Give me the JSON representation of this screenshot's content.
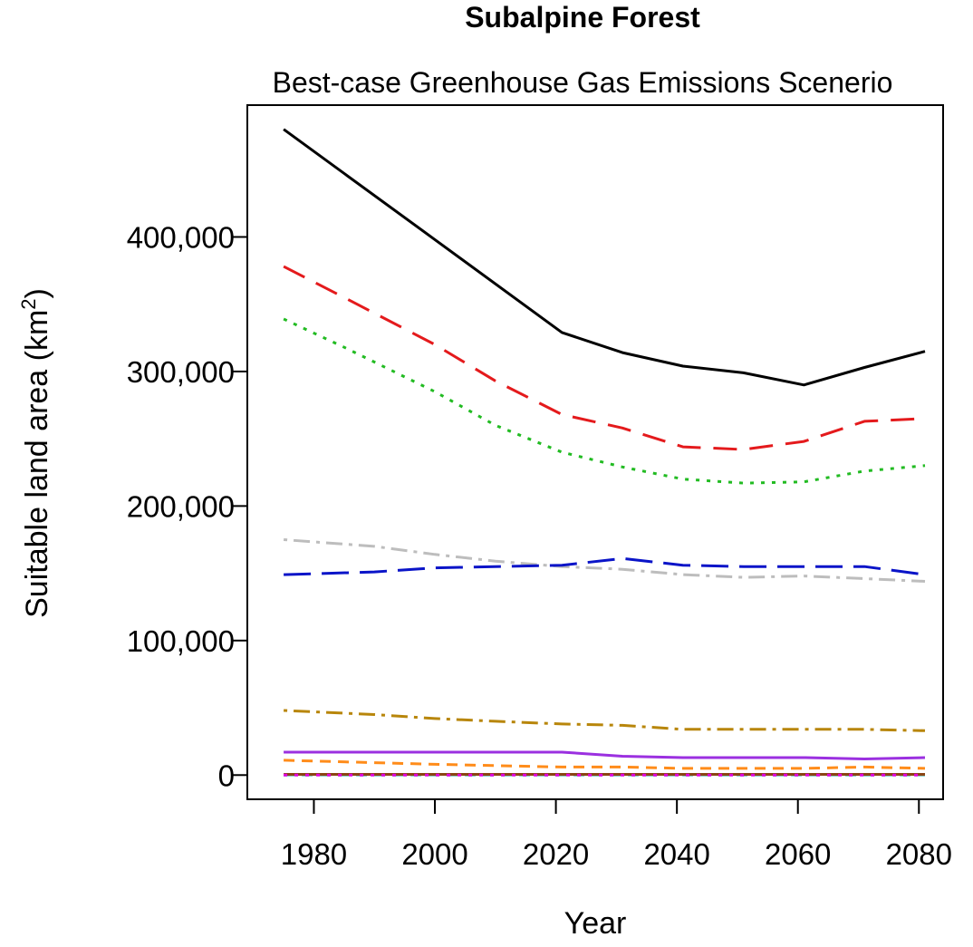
{
  "chart_data": {
    "type": "line",
    "title": "Subalpine Forest",
    "subtitle": "Best-case Greenhouse Gas Emissions Scenerio",
    "xlabel": "Year",
    "ylabel": "Suitable land area (km",
    "ylabel_sup": "2",
    "ylabel_close": ")",
    "xlim": [
      1969,
      2084
    ],
    "ylim": [
      -18000,
      498000
    ],
    "xticks": [
      {
        "value": 1980,
        "label": "1980"
      },
      {
        "value": 2000,
        "label": "2000"
      },
      {
        "value": 2020,
        "label": "2020"
      },
      {
        "value": 2040,
        "label": "2040"
      },
      {
        "value": 2060,
        "label": "2060"
      },
      {
        "value": 2080,
        "label": "2080"
      }
    ],
    "yticks": [
      {
        "value": 0,
        "label": "0"
      },
      {
        "value": 100000,
        "label": "100,000"
      },
      {
        "value": 200000,
        "label": "200,000"
      },
      {
        "value": 300000,
        "label": "300,000"
      },
      {
        "value": 400000,
        "label": "400,000"
      }
    ],
    "grid": false,
    "series": [
      {
        "color": "#000000",
        "dash": "solid",
        "width": 3,
        "x": [
          1975,
          2000,
          2021,
          2031,
          2041,
          2051,
          2061,
          2071,
          2081
        ],
        "y": [
          480000,
          398000,
          329000,
          314000,
          304000,
          299000,
          290000,
          303000,
          315000
        ]
      },
      {
        "color": "#e41a1c",
        "dash": "long",
        "width": 3,
        "x": [
          1975,
          1985,
          2000,
          2010,
          2021,
          2031,
          2041,
          2051,
          2061,
          2071,
          2081
        ],
        "y": [
          378000,
          355000,
          320000,
          293000,
          268000,
          258000,
          244000,
          242000,
          248000,
          263000,
          265000
        ]
      },
      {
        "color": "#22bb22",
        "dash": "dotted",
        "width": 3,
        "x": [
          1975,
          1985,
          2000,
          2010,
          2021,
          2031,
          2041,
          2051,
          2061,
          2071,
          2081
        ],
        "y": [
          339000,
          318000,
          285000,
          260000,
          240000,
          229000,
          220000,
          217000,
          218000,
          226000,
          230000
        ]
      },
      {
        "color": "#bdbdbd",
        "dash": "dotdash",
        "width": 3,
        "x": [
          1975,
          1990,
          2000,
          2010,
          2021,
          2031,
          2041,
          2051,
          2061,
          2071,
          2081
        ],
        "y": [
          175000,
          170000,
          164000,
          159000,
          155000,
          153000,
          149000,
          147000,
          148000,
          146000,
          144000
        ]
      },
      {
        "color": "#0a14c8",
        "dash": "longdash",
        "width": 3,
        "x": [
          1975,
          1990,
          2000,
          2010,
          2021,
          2031,
          2041,
          2051,
          2061,
          2071,
          2081
        ],
        "y": [
          149000,
          151000,
          154000,
          155000,
          156000,
          161000,
          156000,
          155000,
          155000,
          155000,
          149000
        ]
      },
      {
        "color": "#b8860b",
        "dash": "dotdash",
        "width": 3,
        "x": [
          1975,
          1990,
          2000,
          2010,
          2021,
          2031,
          2041,
          2051,
          2061,
          2071,
          2081
        ],
        "y": [
          48000,
          45000,
          42000,
          40000,
          38000,
          37000,
          34000,
          34000,
          34000,
          34000,
          33000
        ]
      },
      {
        "color": "#9b30e0",
        "dash": "solid",
        "width": 3,
        "x": [
          1975,
          2000,
          2021,
          2031,
          2041,
          2051,
          2061,
          2071,
          2081
        ],
        "y": [
          17000,
          17000,
          17000,
          14000,
          13000,
          13000,
          13000,
          12000,
          13000
        ]
      },
      {
        "color": "#ff8c1a",
        "dash": "dashed",
        "width": 3,
        "x": [
          1975,
          2000,
          2021,
          2031,
          2041,
          2051,
          2061,
          2071,
          2081
        ],
        "y": [
          11000,
          8000,
          6000,
          6000,
          5000,
          5000,
          5000,
          6000,
          5000
        ]
      },
      {
        "color": "#66c2c2",
        "dash": "dashed",
        "width": 3,
        "x": [
          1975,
          2000,
          2021,
          2041,
          2061,
          2081
        ],
        "y": [
          0,
          0,
          0,
          0,
          0,
          0
        ]
      },
      {
        "color": "#8b4513",
        "dash": "solid",
        "width": 3,
        "x": [
          1975,
          2000,
          2021,
          2041,
          2061,
          2081
        ],
        "y": [
          500,
          500,
          500,
          500,
          500,
          500
        ]
      },
      {
        "color": "#e000e0",
        "dash": "dotted",
        "width": 3,
        "x": [
          1975,
          2000,
          2021,
          2041,
          2061,
          2081
        ],
        "y": [
          0,
          0,
          0,
          0,
          0,
          0
        ]
      }
    ]
  }
}
